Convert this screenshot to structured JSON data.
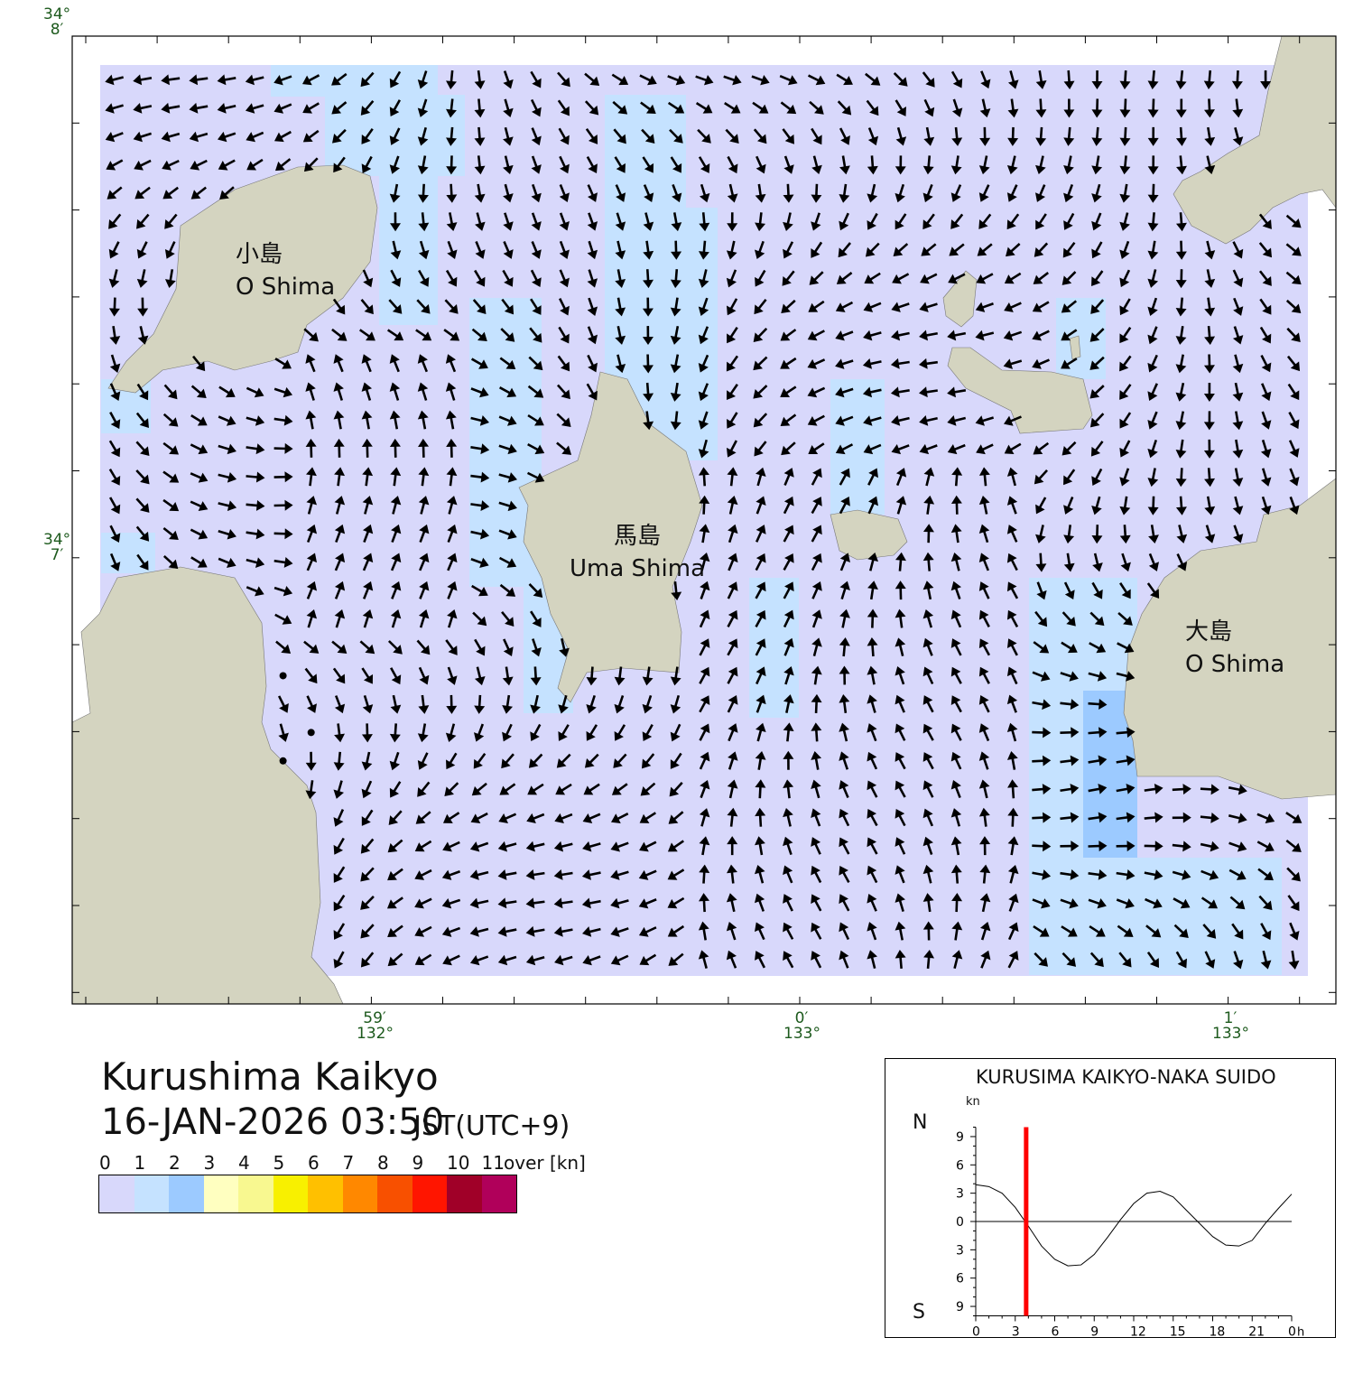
{
  "map": {
    "title": "Kurushima Kaikyo",
    "datetime": "16-JAN-2026 03:50",
    "timezone": "JST(UTC+9)",
    "lat_labels": [
      {
        "deg": "34°",
        "min": "8′"
      },
      {
        "deg": "34°",
        "min": "7′"
      }
    ],
    "lon_labels": [
      {
        "min": "59′",
        "deg": "132°"
      },
      {
        "min": "0′",
        "deg": "133°"
      },
      {
        "min": "1′",
        "deg": "133°"
      }
    ],
    "islands": [
      {
        "ja": "小島",
        "en": "O Shima"
      },
      {
        "ja": "馬島",
        "en": "Uma Shima"
      },
      {
        "ja": "大島",
        "en": "O Shima"
      }
    ],
    "colors": {
      "land": "#d4d4c0",
      "water_0_1": "#d8d8fb",
      "water_1_2": "#c5e2ff",
      "water_2_3": "#9ccaff",
      "arrow": "#000000"
    }
  },
  "legend": {
    "labels": [
      "0",
      "1",
      "2",
      "3",
      "4",
      "5",
      "6",
      "7",
      "8",
      "9",
      "10",
      "11"
    ],
    "over_label": "over [kn]",
    "colors": [
      "#d8d8fb",
      "#c5e2ff",
      "#9ccaff",
      "#ffffc0",
      "#f8f890",
      "#f8f000",
      "#ffc000",
      "#ff8800",
      "#f85000",
      "#ff1500",
      "#a00028",
      "#b0005a"
    ]
  },
  "chart_data": {
    "type": "line",
    "title": "KURUSIMA KAIKYO-NAKA SUIDO",
    "ylabel": "kn",
    "y_top_label": "N",
    "y_bottom_label": "S",
    "x_ticks": [
      "0",
      "3",
      "6",
      "9",
      "12",
      "15",
      "18",
      "21",
      "0"
    ],
    "x_unit": "h",
    "y_ticks": [
      "9",
      "6",
      "3",
      "0",
      "3",
      "6",
      "9"
    ],
    "xlim": [
      0,
      24
    ],
    "ylim": [
      -10,
      10
    ],
    "x": [
      0,
      1,
      2,
      3,
      4,
      5,
      6,
      7,
      8,
      9,
      10,
      11,
      12,
      13,
      14,
      15,
      16,
      17,
      18,
      19,
      20,
      21,
      22,
      23,
      24
    ],
    "values": [
      3.9,
      3.7,
      3.0,
      1.5,
      -0.5,
      -2.6,
      -4.0,
      -4.7,
      -4.6,
      -3.5,
      -1.7,
      0.2,
      1.9,
      3.0,
      3.2,
      2.6,
      1.2,
      -0.2,
      -1.6,
      -2.5,
      -2.6,
      -2.0,
      -0.2,
      1.4,
      2.9
    ],
    "current_time_h": 3.83,
    "marker_color": "#ff0000"
  }
}
